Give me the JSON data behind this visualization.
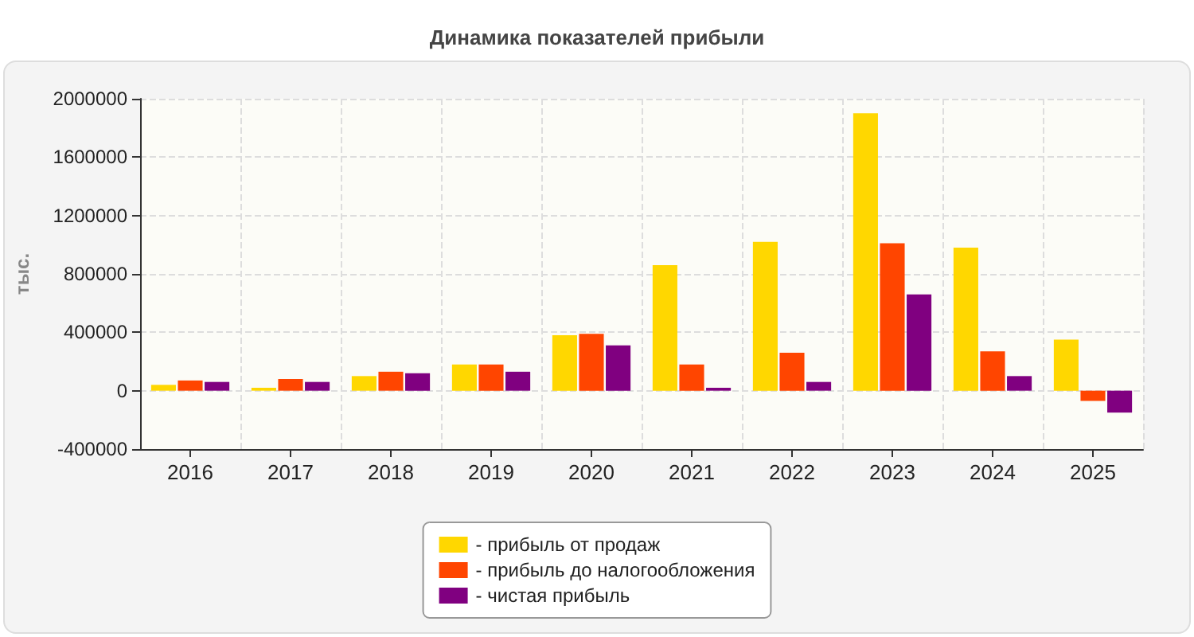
{
  "chart_data": {
    "type": "bar",
    "title": "Динамика показателей прибыли",
    "ylabel": "тыс.",
    "categories": [
      "2016",
      "2017",
      "2018",
      "2019",
      "2020",
      "2021",
      "2022",
      "2023",
      "2024",
      "2025"
    ],
    "series": [
      {
        "name": "- прибыль от продаж",
        "color": "#ffd700",
        "values": [
          40000,
          20000,
          100000,
          180000,
          380000,
          860000,
          1020000,
          1900000,
          980000,
          350000
        ]
      },
      {
        "name": "- прибыль до налогообложения",
        "color": "#ff4500",
        "values": [
          70000,
          80000,
          130000,
          180000,
          390000,
          180000,
          260000,
          1010000,
          270000,
          -70000
        ]
      },
      {
        "name": "- чистая прибыль",
        "color": "#800080",
        "values": [
          60000,
          60000,
          120000,
          130000,
          310000,
          20000,
          60000,
          660000,
          100000,
          -150000
        ]
      }
    ],
    "ylim": [
      -400000,
      2000000
    ],
    "yticks": [
      -400000,
      0,
      400000,
      800000,
      1200000,
      1600000,
      2000000
    ],
    "grid": true,
    "legend": "bottom"
  }
}
